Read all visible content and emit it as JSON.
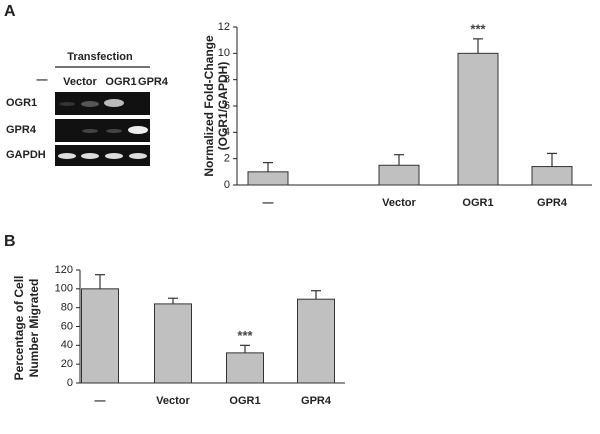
{
  "panel_labels": [
    "A",
    "B"
  ],
  "gel": {
    "title": "Transfection",
    "lanes": [
      "—",
      "Vector",
      "OGR1",
      "GPR4"
    ],
    "rows": [
      "OGR1",
      "GPR4",
      "GAPDH"
    ]
  },
  "chart_data": [
    {
      "type": "bar",
      "y_label": [
        "Normalized Fold-Change",
        "(OGR1/GAPDH)"
      ],
      "categories": [
        "—",
        "Vector",
        "OGR1",
        "GPR4"
      ],
      "values": [
        1.0,
        1.5,
        10.0,
        1.4
      ],
      "errors": [
        0.7,
        0.8,
        1.1,
        1.0
      ],
      "color": "#c0c0c0",
      "ylim": [
        0,
        12
      ],
      "yticks": [
        0,
        2,
        4,
        6,
        8,
        10,
        12
      ],
      "annotations": [
        {
          "text": "***",
          "category": "OGR1"
        }
      ]
    },
    {
      "type": "bar",
      "y_label": [
        "Percentage of Cell",
        "Number Migrated"
      ],
      "categories": [
        "—",
        "Vector",
        "OGR1",
        "GPR4"
      ],
      "values": [
        100,
        84,
        32,
        89
      ],
      "errors": [
        15,
        6,
        8,
        9
      ],
      "color": "#c0c0c0",
      "ylim": [
        0,
        120
      ],
      "yticks": [
        0,
        20,
        40,
        60,
        80,
        100,
        120
      ],
      "annotations": [
        {
          "text": "***",
          "category": "OGR1"
        }
      ]
    }
  ]
}
